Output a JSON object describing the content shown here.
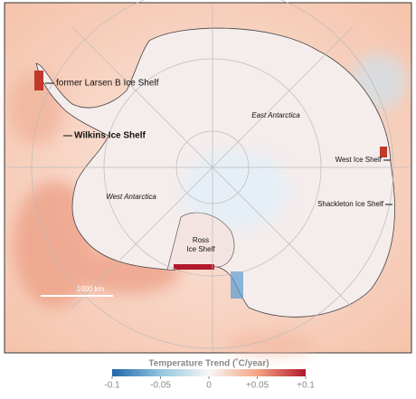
{
  "labels": {
    "larsen": "former Larsen B Ice Shelf",
    "wilkins": "Wilkins Ice Shelf",
    "east": "East Antarctica",
    "west": "West Antarctica",
    "west_shelf": "West Ice Shelf",
    "shackleton": "Shackleton Ice Shelf",
    "ross": [
      "Ross",
      "Ice Shelf"
    ],
    "scale": "1000 km"
  },
  "legend": {
    "title": "Temperature Trend (˚C/year)",
    "lim": [
      -0.1,
      0.1
    ],
    "ticks": [
      -0.1,
      -0.05,
      0,
      {
        "value": 0.05,
        "label": "+0.05"
      },
      {
        "value": 0.1,
        "label": "+0.1"
      }
    ]
  }
}
